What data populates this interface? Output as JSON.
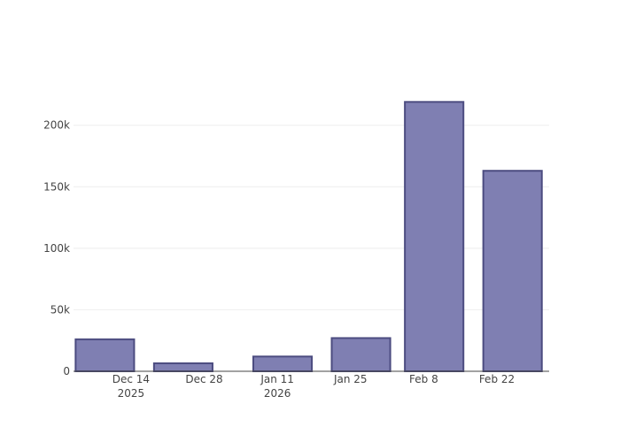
{
  "chart_data": {
    "type": "bar",
    "x": [
      "2025-12-09",
      "2025-12-24",
      "2026-01-12",
      "2026-01-27",
      "2026-02-10",
      "2026-02-25"
    ],
    "values": [
      26000,
      6500,
      12000,
      27000,
      219000,
      163000
    ],
    "color": "#7f7fb2",
    "line_color": "#4c4c80",
    "xlim": [
      "2025-12-03",
      "2026-03-04"
    ],
    "xticks": [
      {
        "value": "2025-12-14",
        "label": "Dec 14\n2025"
      },
      {
        "value": "2025-12-28",
        "label": "Dec 28"
      },
      {
        "value": "2026-01-11",
        "label": "Jan 11\n2026"
      },
      {
        "value": "2026-01-25",
        "label": "Jan 25"
      },
      {
        "value": "2026-02-08",
        "label": "Feb 8"
      },
      {
        "value": "2026-02-22",
        "label": "Feb 22"
      }
    ],
    "ylim": [
      0,
      230000
    ],
    "yticks": [
      0,
      {
        "value": 50000,
        "label": "50k"
      },
      {
        "value": 100000,
        "label": "100k"
      },
      {
        "value": 150000,
        "label": "150k"
      },
      {
        "value": 200000,
        "label": "200k"
      }
    ],
    "grid": true
  }
}
